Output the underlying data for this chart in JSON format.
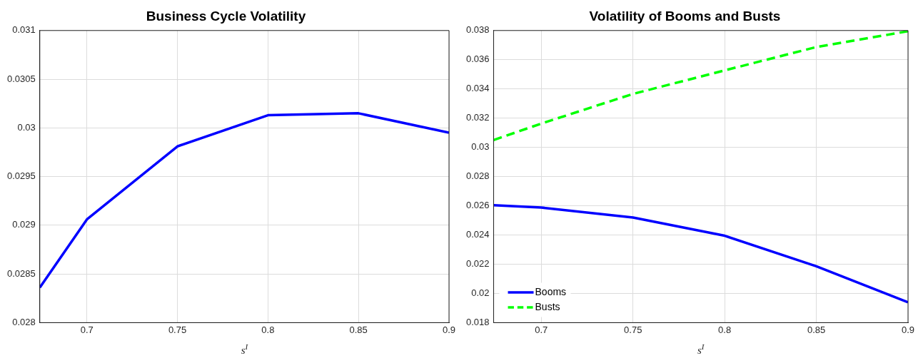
{
  "chart_data": [
    {
      "type": "line",
      "title": "Business Cycle Volatility",
      "xlabel": "s$^{I}$",
      "x": [
        0.674,
        0.7,
        0.75,
        0.8,
        0.85,
        0.9
      ],
      "series": [
        {
          "color": "#0000ff",
          "values": [
            0.02836,
            0.02906,
            0.02981,
            0.03013,
            0.03015,
            0.02995
          ]
        }
      ],
      "xlim": [
        0.674,
        0.9
      ],
      "xticks": [
        0.7,
        0.75,
        0.8,
        0.85,
        0.9
      ],
      "ylim": [
        0.028,
        0.031
      ],
      "yticks": [
        0.028,
        0.0285,
        0.029,
        0.0295,
        0.03,
        0.0305,
        0.031
      ],
      "grid": true,
      "line_style": "solid"
    },
    {
      "type": "line",
      "title": "Volatility of Booms and Busts",
      "xlabel": "s$^{I}$",
      "x": [
        0.674,
        0.7,
        0.75,
        0.8,
        0.85,
        0.9
      ],
      "series": [
        {
          "name": "Booms",
          "color": "#0000ff",
          "line_style": "solid",
          "values": [
            0.02604,
            0.02588,
            0.0252,
            0.02395,
            0.02186,
            0.01939
          ]
        },
        {
          "name": "Busts",
          "color": "#00ff00",
          "line_style": "dashed",
          "values": [
            0.0305,
            0.03163,
            0.03366,
            0.03527,
            0.03687,
            0.03795
          ]
        }
      ],
      "xlim": [
        0.674,
        0.9
      ],
      "xticks": [
        0.7,
        0.75,
        0.8,
        0.85,
        0.9
      ],
      "ylim": [
        0.018,
        0.038
      ],
      "yticks": [
        0.018,
        0.02,
        0.022,
        0.024,
        0.026,
        0.028,
        0.03,
        0.032,
        0.034,
        0.036,
        0.038
      ],
      "grid": true,
      "legend": "bottom left"
    }
  ]
}
